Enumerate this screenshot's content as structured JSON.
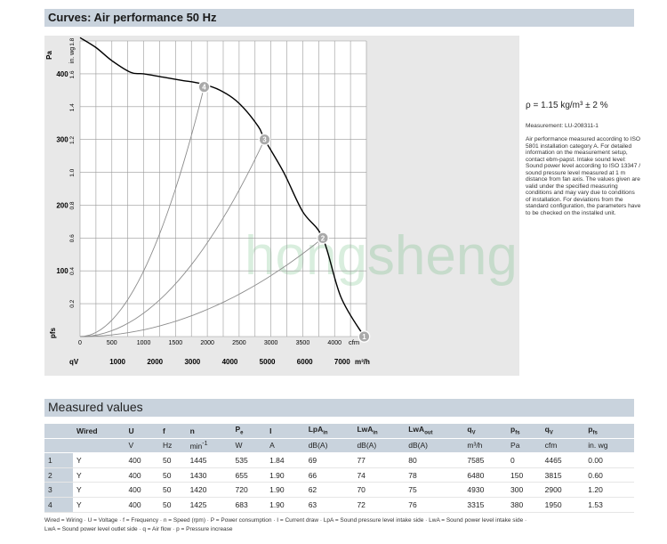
{
  "header": {
    "title": "Curves: Air performance 50 Hz"
  },
  "chart_data": {
    "type": "line",
    "ylabel_left": "Pa",
    "ylabel_right": "in. wg",
    "yticks_pa": [
      "100",
      "200",
      "300",
      "400"
    ],
    "yticks_inwg": [
      "0.2",
      "0.4",
      "0.6",
      "0.8",
      "1.0",
      "1.2",
      "1.4",
      "1.6",
      "1.8"
    ],
    "y_axis_symbol": "pfs",
    "xlabel_cfm": "cfm",
    "xticks_cfm": [
      "0",
      "500",
      "1000",
      "1500",
      "2000",
      "2500",
      "3000",
      "3500",
      "4000"
    ],
    "xlabel_m3h": "m³/h",
    "x_axis_symbol": "qV",
    "xticks_m3h": [
      "1000",
      "2000",
      "3000",
      "4000",
      "5000",
      "6000",
      "7000"
    ],
    "xlim_cfm": [
      0,
      4500
    ],
    "ylim_pa": [
      0,
      450
    ],
    "series": [
      {
        "points_cfm_pa": [
          [
            0,
            455
          ],
          [
            250,
            440
          ],
          [
            500,
            420
          ],
          [
            800,
            402
          ],
          [
            1000,
            400
          ],
          [
            1300,
            395
          ],
          [
            1600,
            390
          ],
          [
            1900,
            385
          ],
          [
            2200,
            375
          ],
          [
            2500,
            355
          ],
          [
            2800,
            320
          ],
          [
            2900,
            300
          ],
          [
            3200,
            250
          ],
          [
            3500,
            190
          ],
          [
            3815,
            150
          ],
          [
            4100,
            60
          ],
          [
            4465,
            0
          ]
        ]
      }
    ],
    "operating_points": [
      {
        "label": "1",
        "cfm": 4465,
        "pa": 0
      },
      {
        "label": "2",
        "cfm": 3815,
        "pa": 150
      },
      {
        "label": "3",
        "cfm": 2900,
        "pa": 300
      },
      {
        "label": "4",
        "cfm": 1950,
        "pa": 380
      }
    ],
    "system_curves": [
      "1",
      "2",
      "3",
      "4"
    ]
  },
  "notes": {
    "rho": "ρ = 1.15 kg/m³ ± 2 %",
    "measurement": "Measurement: LU-208311-1",
    "performance": "Air performance measured according to ISO 5801 installation category A. For detailed information on the measurement setup, contact ebm-papst. Intake sound level: Sound power level according to ISO 13347 / sound pressure level measured at 1 m distance from fan axis. The values given are valid under the specified measuring conditions and may vary due to conditions of installation. For deviations from the standard configuration, the parameters have to be checked on the installed unit."
  },
  "watermark": "hongsheng",
  "measured": {
    "title": "Measured values",
    "headers": [
      "Wired",
      "U",
      "f",
      "n",
      "P",
      "I",
      "LpA",
      "LwA",
      "LwA",
      "q",
      "p",
      "q",
      "p"
    ],
    "header_subs": [
      "",
      "",
      "",
      "",
      "e",
      "",
      "in",
      "in",
      "out",
      "V",
      "fs",
      "V",
      "fs"
    ],
    "units": [
      "V",
      "Hz",
      "min",
      "W",
      "A",
      "dB(A)",
      "dB(A)",
      "dB(A)",
      "m³/h",
      "Pa",
      "cfm",
      "in. wg"
    ],
    "rpm_unit_sup": "-1",
    "rows": [
      [
        "1",
        "Y",
        "400",
        "50",
        "1445",
        "535",
        "1.84",
        "69",
        "77",
        "80",
        "7585",
        "0",
        "4465",
        "0.00"
      ],
      [
        "2",
        "Y",
        "400",
        "50",
        "1430",
        "655",
        "1.90",
        "66",
        "74",
        "78",
        "6480",
        "150",
        "3815",
        "0.60"
      ],
      [
        "3",
        "Y",
        "400",
        "50",
        "1420",
        "720",
        "1.90",
        "62",
        "70",
        "75",
        "4930",
        "300",
        "2900",
        "1.20"
      ],
      [
        "4",
        "Y",
        "400",
        "50",
        "1425",
        "683",
        "1.90",
        "63",
        "72",
        "76",
        "3315",
        "380",
        "1950",
        "1.53"
      ]
    ]
  },
  "legend": {
    "line1": "Wired = Wiring · U = Voltage · f = Frequency · n = Speed (rpm) · P = Power consumption · I = Current draw · LpA = Sound pressure level intake side · LwA = Sound power level intake side ·",
    "line2": "LwA = Sound power level outlet side · q = Air flow · p = Pressure increase"
  }
}
